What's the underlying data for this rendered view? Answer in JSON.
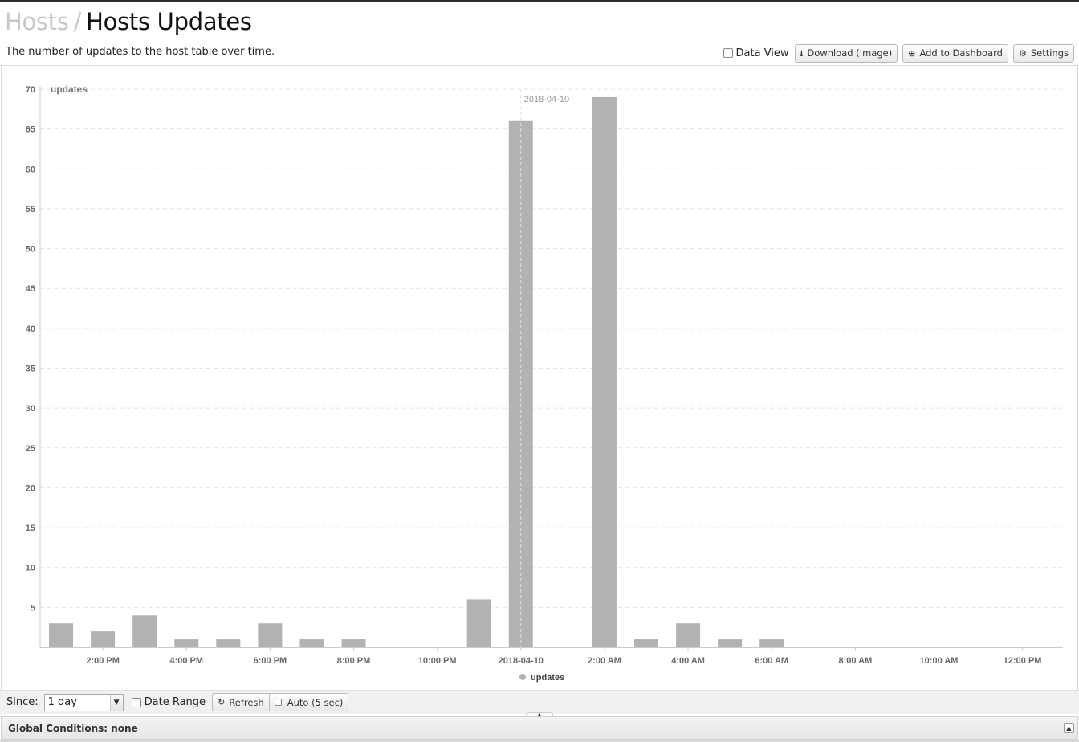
{
  "header": {
    "breadcrumb": "Hosts",
    "separator": "/",
    "title": "Hosts Updates",
    "subtitle": "The number of updates to the host table over time."
  },
  "toolbar": {
    "data_view_label": "Data View",
    "download_label": "Download (Image)",
    "add_dashboard_label": "Add to Dashboard",
    "settings_label": "Settings"
  },
  "controls": {
    "since_label": "Since:",
    "since_value": "1 day",
    "date_range_label": "Date Range",
    "refresh_label": "Refresh",
    "auto_label": "Auto (5 sec)"
  },
  "global_conditions": "Global Conditions: none",
  "chart_data": {
    "type": "bar",
    "title": "",
    "ylabel": "updates",
    "xlabel": "",
    "ylim": [
      0,
      70
    ],
    "yticks": [
      5,
      10,
      15,
      20,
      25,
      30,
      35,
      40,
      45,
      50,
      55,
      60,
      65,
      70
    ],
    "grid": true,
    "legend_position": "bottom",
    "bar_color": "#b2b2b2",
    "x_ticks": [
      {
        "hour": 14,
        "label": "2:00 PM"
      },
      {
        "hour": 16,
        "label": "4:00 PM"
      },
      {
        "hour": 18,
        "label": "6:00 PM"
      },
      {
        "hour": 20,
        "label": "8:00 PM"
      },
      {
        "hour": 22,
        "label": "10:00 PM"
      },
      {
        "hour": 24,
        "label": "2018-04-10"
      },
      {
        "hour": 26,
        "label": "2:00 AM"
      },
      {
        "hour": 28,
        "label": "4:00 AM"
      },
      {
        "hour": 30,
        "label": "6:00 AM"
      },
      {
        "hour": 32,
        "label": "8:00 AM"
      },
      {
        "hour": 34,
        "label": "10:00 AM"
      },
      {
        "hour": 36,
        "label": "12:00 PM"
      }
    ],
    "marker": {
      "hour": 24,
      "label": "2018-04-10"
    },
    "series": [
      {
        "name": "updates",
        "points": [
          {
            "hour": 13,
            "value": 3
          },
          {
            "hour": 14,
            "value": 2
          },
          {
            "hour": 15,
            "value": 4
          },
          {
            "hour": 16,
            "value": 1
          },
          {
            "hour": 17,
            "value": 1
          },
          {
            "hour": 18,
            "value": 3
          },
          {
            "hour": 19,
            "value": 1
          },
          {
            "hour": 20,
            "value": 1
          },
          {
            "hour": 23,
            "value": 6
          },
          {
            "hour": 24,
            "value": 66
          },
          {
            "hour": 26,
            "value": 69
          },
          {
            "hour": 27,
            "value": 1
          },
          {
            "hour": 28,
            "value": 3
          },
          {
            "hour": 29,
            "value": 1
          },
          {
            "hour": 30,
            "value": 1
          }
        ]
      }
    ]
  }
}
